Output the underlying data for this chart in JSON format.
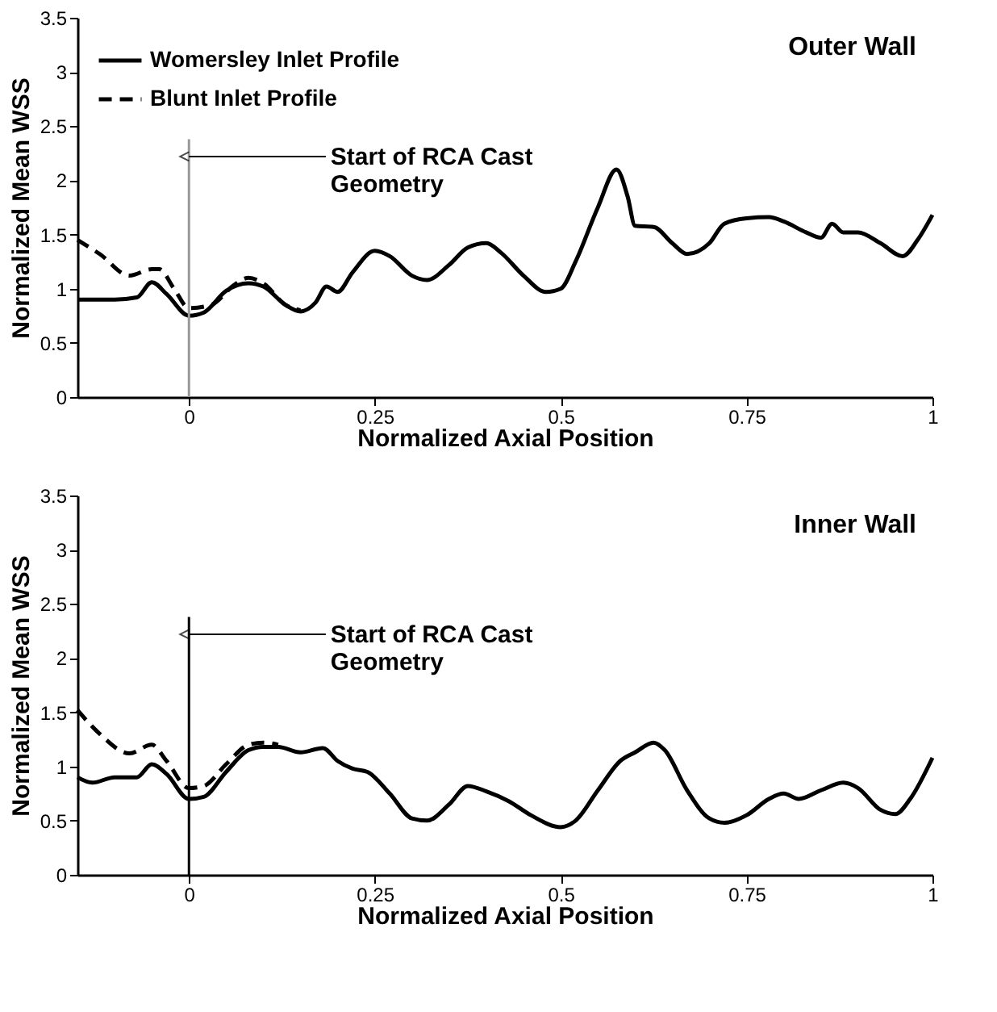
{
  "chart_data": [
    {
      "type": "line",
      "title": "Outer Wall",
      "xlabel": "Normalized Axial Position",
      "ylabel": "Normalized Mean WSS",
      "xlim": [
        -0.15,
        1.0
      ],
      "xticks": [
        0,
        0.25,
        0.5,
        0.75,
        1
      ],
      "ylim": [
        0,
        3.5
      ],
      "yticks": [
        0,
        0.5,
        1,
        1.5,
        2,
        2.5,
        3,
        3.5
      ],
      "grid": false,
      "legend": "top left",
      "series": [
        {
          "name": "Womersley Inlet Profile",
          "color": "#000000",
          "line_style": "solid",
          "x": [
            -0.15,
            -0.1,
            -0.07,
            -0.05,
            -0.03,
            0,
            0.02,
            0.05,
            0.08,
            0.1,
            0.13,
            0.15,
            0.17,
            0.185,
            0.2,
            0.22,
            0.25,
            0.27,
            0.3,
            0.32,
            0.35,
            0.375,
            0.4,
            0.42,
            0.45,
            0.48,
            0.5,
            0.52,
            0.55,
            0.575,
            0.59,
            0.6,
            0.625,
            0.65,
            0.67,
            0.7,
            0.72,
            0.75,
            0.78,
            0.8,
            0.83,
            0.85,
            0.865,
            0.88,
            0.9,
            0.93,
            0.96,
            0.98,
            1.0
          ],
          "values": [
            0.9,
            0.9,
            0.92,
            1.06,
            0.95,
            0.75,
            0.78,
            0.98,
            1.05,
            1.02,
            0.85,
            0.79,
            0.87,
            1.02,
            0.97,
            1.15,
            1.35,
            1.3,
            1.12,
            1.08,
            1.22,
            1.38,
            1.42,
            1.33,
            1.12,
            0.97,
            1.0,
            1.25,
            1.75,
            2.1,
            1.85,
            1.58,
            1.57,
            1.42,
            1.32,
            1.42,
            1.6,
            1.65,
            1.66,
            1.62,
            1.52,
            1.47,
            1.6,
            1.52,
            1.52,
            1.42,
            1.3,
            1.45,
            1.68
          ]
        },
        {
          "name": "Blunt Inlet Profile",
          "color": "#000000",
          "line_style": "dashed",
          "x": [
            -0.15,
            -0.12,
            -0.08,
            -0.05,
            -0.04,
            -0.02,
            0,
            0.03,
            0.06,
            0.08,
            0.1,
            0.13,
            0.15
          ],
          "values": [
            1.45,
            1.32,
            1.12,
            1.18,
            1.18,
            1.0,
            0.82,
            0.85,
            1.03,
            1.1,
            1.05,
            0.85,
            0.8
          ]
        }
      ],
      "ref_lines": [
        {
          "axis": "x",
          "value": 0,
          "color": "#999999"
        }
      ],
      "annotations": [
        {
          "text": "Start of RCA Cast Geometry",
          "x": 0,
          "y": 2.22
        }
      ]
    },
    {
      "type": "line",
      "title": "Inner Wall",
      "xlabel": "Normalized Axial Position",
      "ylabel": "Normalized Mean WSS",
      "xlim": [
        -0.15,
        1.0
      ],
      "xticks": [
        0,
        0.25,
        0.5,
        0.75,
        1
      ],
      "ylim": [
        0,
        3.5
      ],
      "yticks": [
        0,
        0.5,
        1,
        1.5,
        2,
        2.5,
        3,
        3.5
      ],
      "grid": false,
      "legend": "top left",
      "series": [
        {
          "name": "Womersley Inlet Profile",
          "color": "#000000",
          "line_style": "solid",
          "x": [
            -0.15,
            -0.13,
            -0.1,
            -0.07,
            -0.05,
            -0.03,
            0,
            0.02,
            0.05,
            0.08,
            0.1,
            0.12,
            0.15,
            0.18,
            0.2,
            0.22,
            0.24,
            0.27,
            0.3,
            0.32,
            0.35,
            0.375,
            0.4,
            0.43,
            0.46,
            0.5,
            0.52,
            0.55,
            0.58,
            0.6,
            0.625,
            0.64,
            0.67,
            0.7,
            0.72,
            0.75,
            0.78,
            0.8,
            0.82,
            0.85,
            0.88,
            0.9,
            0.93,
            0.95,
            0.97,
            1.0
          ],
          "values": [
            0.9,
            0.85,
            0.9,
            0.9,
            1.02,
            0.93,
            0.7,
            0.72,
            0.95,
            1.15,
            1.18,
            1.18,
            1.13,
            1.17,
            1.05,
            0.98,
            0.95,
            0.75,
            0.52,
            0.5,
            0.65,
            0.82,
            0.77,
            0.68,
            0.55,
            0.44,
            0.5,
            0.78,
            1.05,
            1.13,
            1.22,
            1.15,
            0.78,
            0.52,
            0.48,
            0.55,
            0.7,
            0.75,
            0.7,
            0.78,
            0.85,
            0.8,
            0.6,
            0.56,
            0.7,
            1.08
          ]
        },
        {
          "name": "Blunt Inlet Profile",
          "color": "#000000",
          "line_style": "dashed",
          "x": [
            -0.15,
            -0.12,
            -0.08,
            -0.05,
            -0.03,
            0,
            0.02,
            0.05,
            0.08,
            0.1,
            0.12
          ],
          "values": [
            1.52,
            1.3,
            1.12,
            1.2,
            1.05,
            0.8,
            0.82,
            1.02,
            1.2,
            1.22,
            1.2
          ]
        }
      ],
      "ref_lines": [
        {
          "axis": "x",
          "value": 0,
          "color": "#000000"
        }
      ],
      "annotations": [
        {
          "text": "Start of RCA Cast Geometry",
          "x": 0,
          "y": 2.22
        }
      ]
    }
  ]
}
